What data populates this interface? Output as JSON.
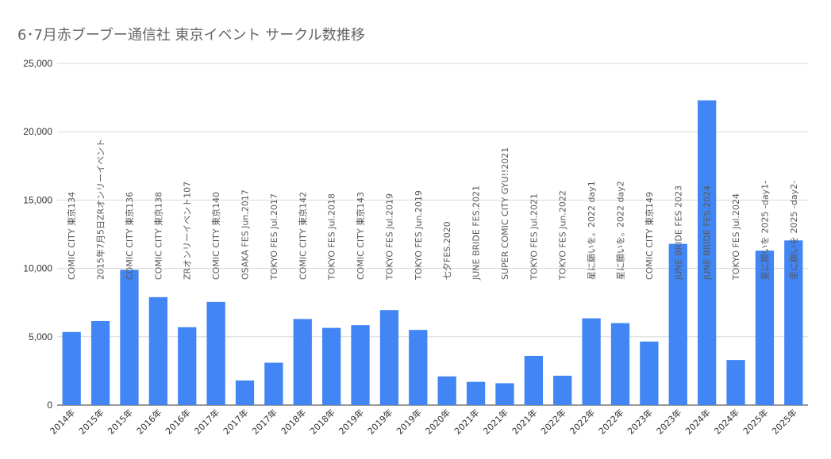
{
  "chart_data": {
    "type": "bar",
    "title": "6･7月赤ブーブー通信社 東京イベント サークル数推移",
    "xlabel": "",
    "ylabel": "",
    "ylim": [
      0,
      25000
    ],
    "yticks": [
      0,
      5000,
      10000,
      15000,
      20000,
      25000
    ],
    "ytick_labels": [
      "0",
      "5,000",
      "10,000",
      "15,000",
      "20,000",
      "25,000"
    ],
    "grid": true,
    "legend": "none",
    "bar_color": "#4285f4",
    "categories": [
      "2014年",
      "2015年",
      "2015年",
      "2016年",
      "2016年",
      "2017年",
      "2017年",
      "2017年",
      "2018年",
      "2018年",
      "2019年",
      "2019年",
      "2019年",
      "2020年",
      "2021年",
      "2021年",
      "2021年",
      "2022年",
      "2022年",
      "2022年",
      "2023年",
      "2023年",
      "2024年",
      "2024年",
      "2025年",
      "2025年"
    ],
    "values": [
      5350,
      6150,
      9900,
      7900,
      5700,
      7550,
      1800,
      3100,
      6300,
      5650,
      5850,
      6950,
      5500,
      2100,
      1700,
      1600,
      3600,
      2150,
      6350,
      6000,
      4650,
      11800,
      22300,
      3300,
      11300,
      12050
    ],
    "event_labels": [
      "COMIC CITY 東京134",
      "2015年7月5日ZRオンリーイベント",
      "COMIC CITY 東京136",
      "COMIC CITY 東京138",
      "ZRオンリーイベント107",
      "COMIC CITY 東京140",
      "OSAKA FES Jun.2017",
      "TOKYO FES Jul.2017",
      "COMIC CITY 東京142",
      "TOKYO FES Jul.2018",
      "COMIC CITY 東京143",
      "TOKYO FES Jul.2019",
      "TOKYO FES Jun.2019",
      "七夕FES.2020",
      "JUNE BRIDE FES.2021",
      "SUPER COMIC CITY GYU!!2021",
      "TOKYO FES Jul.2021",
      "TOKYO FES Jun.2022",
      "星に願いを。2022 day1",
      "星に願いを。2022 day2",
      "COMIC CITY 東京149",
      "JUNE BRIDE FES 2023",
      "JUNE BRIDE FES.2024",
      "TOKYO FES Jul.2024",
      "星に願いを 2025 -day1-",
      "星に願いを 2025 -day2-"
    ]
  }
}
